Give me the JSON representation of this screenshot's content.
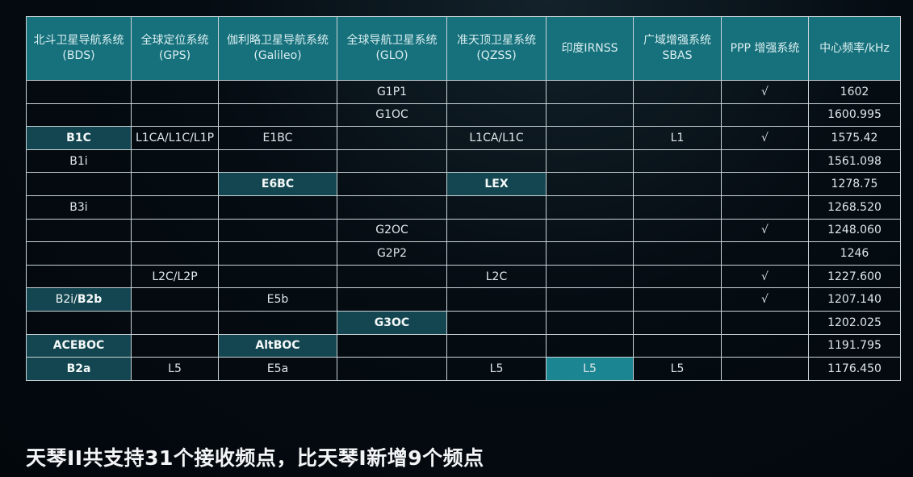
{
  "table": {
    "headers": [
      [
        "北斗卫星导航系统",
        "(BDS)"
      ],
      [
        "全球定位系统",
        "(GPS)"
      ],
      [
        "伽利略卫星导航系统",
        "(Galileo)"
      ],
      [
        "全球导航卫星系统",
        "(GLO)"
      ],
      [
        "准天顶卫星系统",
        "(QZSS)"
      ],
      [
        "印度IRNSS"
      ],
      [
        "广域增强系统",
        "SBAS"
      ],
      [
        "PPP 增强系统"
      ],
      [
        "中心频率/kHz"
      ]
    ],
    "rows": [
      [
        {
          "t": ""
        },
        {
          "t": ""
        },
        {
          "t": ""
        },
        {
          "t": "G1P1"
        },
        {
          "t": ""
        },
        {
          "t": ""
        },
        {
          "t": ""
        },
        {
          "t": "√"
        },
        {
          "t": "1602"
        }
      ],
      [
        {
          "t": ""
        },
        {
          "t": ""
        },
        {
          "t": ""
        },
        {
          "t": "G1OC"
        },
        {
          "t": ""
        },
        {
          "t": ""
        },
        {
          "t": ""
        },
        {
          "t": ""
        },
        {
          "t": "1600.995"
        }
      ],
      [
        {
          "t": "B1C",
          "s": "hl"
        },
        {
          "t": "L1CA/L1C/L1P"
        },
        {
          "t": "E1BC"
        },
        {
          "t": ""
        },
        {
          "t": "L1CA/L1C"
        },
        {
          "t": ""
        },
        {
          "t": "L1"
        },
        {
          "t": "√"
        },
        {
          "t": "1575.42"
        }
      ],
      [
        {
          "t": "B1i"
        },
        {
          "t": ""
        },
        {
          "t": ""
        },
        {
          "t": ""
        },
        {
          "t": ""
        },
        {
          "t": ""
        },
        {
          "t": ""
        },
        {
          "t": ""
        },
        {
          "t": "1561.098"
        }
      ],
      [
        {
          "t": ""
        },
        {
          "t": ""
        },
        {
          "t": "E6BC",
          "s": "hl"
        },
        {
          "t": ""
        },
        {
          "t": "LEX",
          "s": "hl"
        },
        {
          "t": ""
        },
        {
          "t": ""
        },
        {
          "t": ""
        },
        {
          "t": "1278.75"
        }
      ],
      [
        {
          "t": "B3i"
        },
        {
          "t": ""
        },
        {
          "t": ""
        },
        {
          "t": ""
        },
        {
          "t": ""
        },
        {
          "t": ""
        },
        {
          "t": ""
        },
        {
          "t": ""
        },
        {
          "t": "1268.520"
        }
      ],
      [
        {
          "t": ""
        },
        {
          "t": ""
        },
        {
          "t": ""
        },
        {
          "t": "G2OC"
        },
        {
          "t": ""
        },
        {
          "t": ""
        },
        {
          "t": ""
        },
        {
          "t": "√"
        },
        {
          "t": "1248.060"
        }
      ],
      [
        {
          "t": ""
        },
        {
          "t": ""
        },
        {
          "t": ""
        },
        {
          "t": "G2P2"
        },
        {
          "t": ""
        },
        {
          "t": ""
        },
        {
          "t": ""
        },
        {
          "t": ""
        },
        {
          "t": "1246"
        }
      ],
      [
        {
          "t": ""
        },
        {
          "t": "L2C/L2P"
        },
        {
          "t": ""
        },
        {
          "t": ""
        },
        {
          "t": "L2C"
        },
        {
          "t": ""
        },
        {
          "t": ""
        },
        {
          "t": "√"
        },
        {
          "t": "1227.600"
        }
      ],
      [
        {
          "t": "B2i/",
          "b": "B2b",
          "s": "hl"
        },
        {
          "t": ""
        },
        {
          "t": "E5b"
        },
        {
          "t": ""
        },
        {
          "t": ""
        },
        {
          "t": ""
        },
        {
          "t": ""
        },
        {
          "t": "√"
        },
        {
          "t": "1207.140"
        }
      ],
      [
        {
          "t": ""
        },
        {
          "t": ""
        },
        {
          "t": ""
        },
        {
          "t": "G3OC",
          "s": "hl"
        },
        {
          "t": ""
        },
        {
          "t": ""
        },
        {
          "t": ""
        },
        {
          "t": ""
        },
        {
          "t": "1202.025"
        }
      ],
      [
        {
          "t": "ACEBOC",
          "s": "hl"
        },
        {
          "t": ""
        },
        {
          "t": "AltBOC",
          "s": "hl"
        },
        {
          "t": ""
        },
        {
          "t": ""
        },
        {
          "t": ""
        },
        {
          "t": ""
        },
        {
          "t": ""
        },
        {
          "t": "1191.795"
        }
      ],
      [
        {
          "t": "B2a",
          "s": "hl"
        },
        {
          "t": "L5"
        },
        {
          "t": "E5a"
        },
        {
          "t": ""
        },
        {
          "t": "L5"
        },
        {
          "t": "L5",
          "s": "hl2"
        },
        {
          "t": "L5"
        },
        {
          "t": ""
        },
        {
          "t": "1176.450"
        }
      ]
    ]
  },
  "caption": "天琴II共支持31个接收频点，比天琴I新增9个频点",
  "colors": {
    "header": "#17717c",
    "highlight": "#134650",
    "highlight_bright": "#1b8591",
    "background": "#030a10"
  }
}
